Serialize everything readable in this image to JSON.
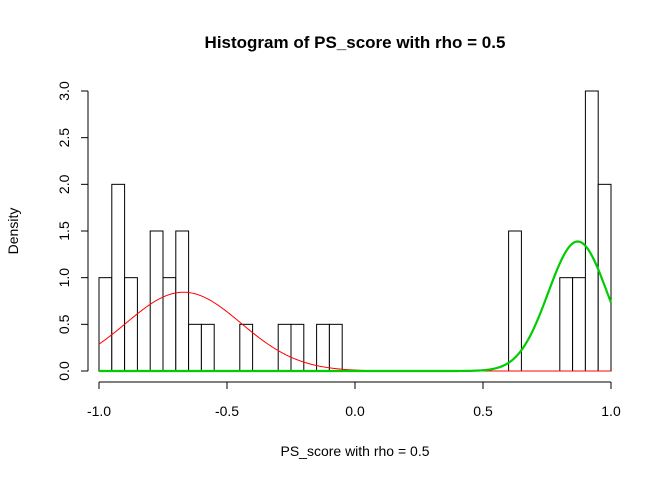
{
  "chart_data": {
    "type": "histogram",
    "title": "Histogram of PS_score with rho = 0.5",
    "xlabel": "PS_score with rho = 0.5",
    "ylabel": "Density",
    "xlim": [
      -1.0,
      1.0
    ],
    "ylim": [
      0,
      3.0
    ],
    "x_ticks": [
      "-1.0",
      "-0.5",
      "0.0",
      "0.5",
      "1.0"
    ],
    "y_ticks": [
      "0.0",
      "0.5",
      "1.0",
      "1.5",
      "2.0",
      "2.5",
      "3.0"
    ],
    "bin_width": 0.05,
    "bins": [
      {
        "start": -1.0,
        "end": -0.95,
        "density": 1.0
      },
      {
        "start": -0.95,
        "end": -0.9,
        "density": 2.0
      },
      {
        "start": -0.9,
        "end": -0.85,
        "density": 1.0
      },
      {
        "start": -0.8,
        "end": -0.75,
        "density": 1.5
      },
      {
        "start": -0.75,
        "end": -0.7,
        "density": 1.0
      },
      {
        "start": -0.7,
        "end": -0.65,
        "density": 1.5
      },
      {
        "start": -0.65,
        "end": -0.6,
        "density": 0.5
      },
      {
        "start": -0.6,
        "end": -0.55,
        "density": 0.5
      },
      {
        "start": -0.45,
        "end": -0.4,
        "density": 0.5
      },
      {
        "start": -0.3,
        "end": -0.25,
        "density": 0.5
      },
      {
        "start": -0.25,
        "end": -0.2,
        "density": 0.5
      },
      {
        "start": -0.15,
        "end": -0.1,
        "density": 0.5
      },
      {
        "start": -0.1,
        "end": -0.05,
        "density": 0.5
      },
      {
        "start": 0.6,
        "end": 0.65,
        "density": 1.5
      },
      {
        "start": 0.8,
        "end": 0.85,
        "density": 1.0
      },
      {
        "start": 0.85,
        "end": 0.9,
        "density": 1.0
      },
      {
        "start": 0.9,
        "end": 0.95,
        "density": 3.0
      },
      {
        "start": 0.95,
        "end": 1.0,
        "density": 2.0
      }
    ],
    "curves": [
      {
        "color": "#ff0000",
        "stroke": "thin",
        "mean": -0.67,
        "sd": 0.225,
        "weight": 0.476,
        "x_range": [
          -1.0,
          1.0
        ]
      },
      {
        "color": "#00cd00",
        "stroke": "thick",
        "mean": 0.87,
        "sd": 0.115,
        "weight": 0.4,
        "x_range": [
          -1.0,
          1.0
        ]
      }
    ],
    "bar_fill": "#ffffff",
    "bar_stroke": "#000000"
  }
}
